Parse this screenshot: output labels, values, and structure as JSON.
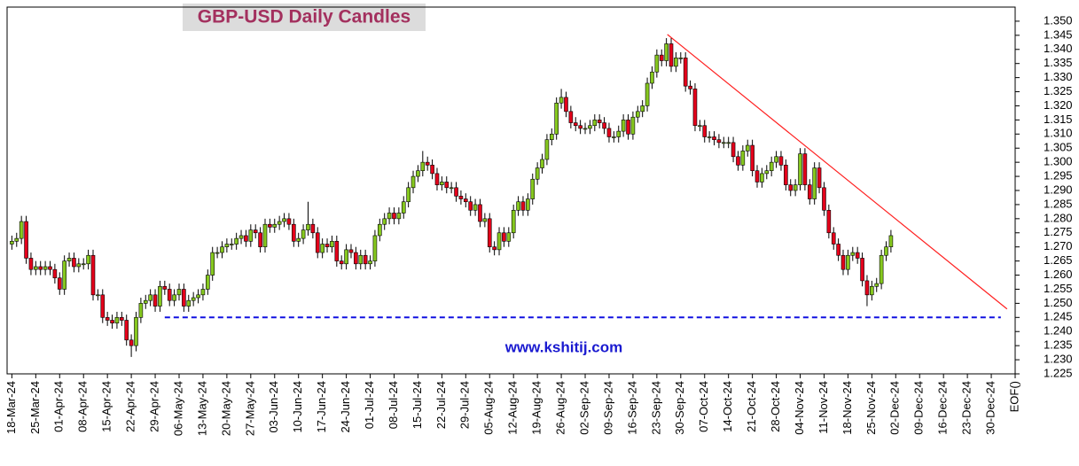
{
  "chart_data": {
    "type": "candlestick",
    "title": "GBP-USD Daily Candles",
    "annotation": "www.kshitij.com",
    "xlim": [
      -1,
      210
    ],
    "ylim": [
      1.225,
      1.355
    ],
    "grid": false,
    "up_color": "#86c81f",
    "down_color": "#e4001b",
    "yticks": [
      {
        "value": 1.35,
        "label": "1.350"
      },
      1.345,
      {
        "value": 1.34,
        "label": "1.340"
      },
      1.335,
      {
        "value": 1.33,
        "label": "1.330"
      },
      1.325,
      {
        "value": 1.32,
        "label": "1.320"
      },
      1.315,
      {
        "value": 1.31,
        "label": "1.310"
      },
      1.305,
      {
        "value": 1.3,
        "label": "1.300"
      },
      1.295,
      {
        "value": 1.29,
        "label": "1.290"
      },
      1.285,
      {
        "value": 1.28,
        "label": "1.280"
      },
      1.275,
      {
        "value": 1.27,
        "label": "1.270"
      },
      1.265,
      {
        "value": 1.26,
        "label": "1.260"
      },
      1.255,
      {
        "value": 1.25,
        "label": "1.250"
      },
      1.245,
      {
        "value": 1.24,
        "label": "1.240"
      },
      1.235,
      {
        "value": 1.23,
        "label": "1.230"
      },
      1.225
    ],
    "xticks": [
      {
        "value": 0,
        "label": "18-Mar-24"
      },
      {
        "value": 5,
        "label": "25-Mar-24"
      },
      {
        "value": 10,
        "label": "01-Apr-24"
      },
      {
        "value": 15,
        "label": "08-Apr-24"
      },
      {
        "value": 20,
        "label": "15-Apr-24"
      },
      {
        "value": 25,
        "label": "22-Apr-24"
      },
      {
        "value": 30,
        "label": "29-Apr-24"
      },
      {
        "value": 35,
        "label": "06-May-24"
      },
      {
        "value": 40,
        "label": "13-May-24"
      },
      {
        "value": 45,
        "label": "20-May-24"
      },
      {
        "value": 50,
        "label": "27-May-24"
      },
      {
        "value": 55,
        "label": "03-Jun-24"
      },
      {
        "value": 60,
        "label": "10-Jun-24"
      },
      {
        "value": 65,
        "label": "17-Jun-24"
      },
      {
        "value": 70,
        "label": "24-Jun-24"
      },
      {
        "value": 75,
        "label": "01-Jul-24"
      },
      {
        "value": 80,
        "label": "08-Jul-24"
      },
      {
        "value": 85,
        "label": "15-Jul-24"
      },
      {
        "value": 90,
        "label": "22-Jul-24"
      },
      {
        "value": 95,
        "label": "29-Jul-24"
      },
      {
        "value": 100,
        "label": "05-Aug-24"
      },
      {
        "value": 105,
        "label": "12-Aug-24"
      },
      {
        "value": 110,
        "label": "19-Aug-24"
      },
      {
        "value": 115,
        "label": "26-Aug-24"
      },
      {
        "value": 120,
        "label": "02-Sep-24"
      },
      {
        "value": 125,
        "label": "09-Sep-24"
      },
      {
        "value": 130,
        "label": "16-Sep-24"
      },
      {
        "value": 135,
        "label": "23-Sep-24"
      },
      {
        "value": 140,
        "label": "30-Sep-24"
      },
      {
        "value": 145,
        "label": "07-Oct-24"
      },
      {
        "value": 150,
        "label": "14-Oct-24"
      },
      {
        "value": 155,
        "label": "21-Oct-24"
      },
      {
        "value": 160,
        "label": "28-Oct-24"
      },
      {
        "value": 165,
        "label": "04-Nov-24"
      },
      {
        "value": 170,
        "label": "11-Nov-24"
      },
      {
        "value": 175,
        "label": "18-Nov-24"
      },
      {
        "value": 180,
        "label": "25-Nov-24"
      },
      {
        "value": 185,
        "label": "02-Dec-24"
      },
      {
        "value": 190,
        "label": "09-Dec-24"
      },
      {
        "value": 195,
        "label": "16-Dec-24"
      },
      {
        "value": 200,
        "label": "23-Dec-24"
      },
      {
        "value": 205,
        "label": "30-Dec-24"
      },
      {
        "value": 210,
        "label": "EOF()"
      }
    ],
    "x": [
      0,
      1,
      2,
      3,
      4,
      5,
      6,
      7,
      8,
      9,
      10,
      11,
      12,
      13,
      14,
      15,
      16,
      17,
      18,
      19,
      20,
      21,
      22,
      23,
      24,
      25,
      26,
      27,
      28,
      29,
      30,
      31,
      32,
      33,
      34,
      35,
      36,
      37,
      38,
      39,
      40,
      41,
      42,
      43,
      44,
      45,
      46,
      47,
      48,
      49,
      50,
      51,
      52,
      53,
      54,
      55,
      56,
      57,
      58,
      59,
      60,
      61,
      62,
      63,
      64,
      65,
      66,
      67,
      68,
      69,
      70,
      71,
      72,
      73,
      74,
      75,
      76,
      77,
      78,
      79,
      80,
      81,
      82,
      83,
      84,
      85,
      86,
      87,
      88,
      89,
      90,
      91,
      92,
      93,
      94,
      95,
      96,
      97,
      98,
      99,
      100,
      101,
      102,
      103,
      104,
      105,
      106,
      107,
      108,
      109,
      110,
      111,
      112,
      113,
      114,
      115,
      116,
      117,
      118,
      119,
      120,
      121,
      122,
      123,
      124,
      125,
      126,
      127,
      128,
      129,
      130,
      131,
      132,
      133,
      134,
      135,
      136,
      137,
      138,
      139,
      140,
      141,
      142,
      143,
      144,
      145,
      146,
      147,
      148,
      149,
      150,
      151,
      152,
      153,
      154,
      155,
      156,
      157,
      158,
      159,
      160,
      161,
      162,
      163,
      164,
      165,
      166,
      167,
      168,
      169,
      170,
      171,
      172,
      173,
      174,
      175,
      176,
      177,
      178,
      179,
      180,
      181,
      182,
      183,
      184
    ],
    "open": [
      1.271,
      1.272,
      1.273,
      1.279,
      1.266,
      1.262,
      1.263,
      1.262,
      1.263,
      1.262,
      1.259,
      1.255,
      1.265,
      1.266,
      1.263,
      1.264,
      1.264,
      1.267,
      1.253,
      1.253,
      1.245,
      1.244,
      1.243,
      1.245,
      1.244,
      1.237,
      1.235,
      1.245,
      1.25,
      1.251,
      1.253,
      1.249,
      1.256,
      1.255,
      1.251,
      1.253,
      1.255,
      1.249,
      1.251,
      1.252,
      1.253,
      1.255,
      1.26,
      1.268,
      1.268,
      1.27,
      1.271,
      1.271,
      1.273,
      1.274,
      1.272,
      1.276,
      1.275,
      1.27,
      1.278,
      1.277,
      1.278,
      1.279,
      1.28,
      1.278,
      1.272,
      1.273,
      1.276,
      1.278,
      1.275,
      1.268,
      1.271,
      1.27,
      1.272,
      1.265,
      1.264,
      1.269,
      1.268,
      1.264,
      1.267,
      1.264,
      1.265,
      1.274,
      1.278,
      1.28,
      1.282,
      1.28,
      1.282,
      1.286,
      1.291,
      1.295,
      1.297,
      1.3,
      1.299,
      1.296,
      1.292,
      1.293,
      1.291,
      1.291,
      1.288,
      1.287,
      1.286,
      1.283,
      1.285,
      1.279,
      1.28,
      1.27,
      1.269,
      1.275,
      1.272,
      1.275,
      1.283,
      1.286,
      1.283,
      1.287,
      1.294,
      1.298,
      1.301,
      1.308,
      1.31,
      1.321,
      1.323,
      1.318,
      1.314,
      1.313,
      1.312,
      1.312,
      1.313,
      1.315,
      1.314,
      1.312,
      1.309,
      1.309,
      1.311,
      1.315,
      1.31,
      1.316,
      1.318,
      1.32,
      1.328,
      1.332,
      1.338,
      1.336,
      1.342,
      1.334,
      1.337,
      1.337,
      1.327,
      1.326,
      1.313,
      1.313,
      1.309,
      1.309,
      1.308,
      1.307,
      1.307,
      1.307,
      1.302,
      1.299,
      1.304,
      1.306,
      1.297,
      1.293,
      1.296,
      1.297,
      1.3,
      1.302,
      1.299,
      1.292,
      1.29,
      1.292,
      1.303,
      1.292,
      1.287,
      1.298,
      1.291,
      1.283,
      1.275,
      1.271,
      1.267,
      1.262,
      1.267,
      1.268,
      1.266,
      1.258,
      1.253,
      1.256,
      1.257,
      1.267,
      1.27
    ],
    "high": [
      1.274,
      1.275,
      1.281,
      1.281,
      1.268,
      1.265,
      1.265,
      1.265,
      1.265,
      1.264,
      1.261,
      1.267,
      1.268,
      1.268,
      1.266,
      1.266,
      1.269,
      1.269,
      1.255,
      1.255,
      1.247,
      1.246,
      1.247,
      1.247,
      1.246,
      1.239,
      1.247,
      1.252,
      1.253,
      1.255,
      1.255,
      1.258,
      1.258,
      1.257,
      1.255,
      1.257,
      1.257,
      1.253,
      1.254,
      1.255,
      1.257,
      1.262,
      1.27,
      1.27,
      1.272,
      1.273,
      1.273,
      1.275,
      1.276,
      1.276,
      1.278,
      1.278,
      1.277,
      1.28,
      1.28,
      1.28,
      1.281,
      1.282,
      1.282,
      1.28,
      1.275,
      1.278,
      1.286,
      1.28,
      1.277,
      1.273,
      1.273,
      1.274,
      1.274,
      1.267,
      1.271,
      1.271,
      1.27,
      1.269,
      1.269,
      1.267,
      1.276,
      1.28,
      1.282,
      1.284,
      1.284,
      1.284,
      1.288,
      1.293,
      1.297,
      1.299,
      1.304,
      1.302,
      1.301,
      1.298,
      1.295,
      1.295,
      1.293,
      1.293,
      1.29,
      1.289,
      1.288,
      1.287,
      1.287,
      1.282,
      1.282,
      1.272,
      1.277,
      1.277,
      1.277,
      1.285,
      1.288,
      1.288,
      1.289,
      1.296,
      1.3,
      1.303,
      1.31,
      1.312,
      1.323,
      1.326,
      1.325,
      1.32,
      1.316,
      1.315,
      1.314,
      1.315,
      1.317,
      1.317,
      1.316,
      1.314,
      1.311,
      1.313,
      1.317,
      1.317,
      1.318,
      1.32,
      1.322,
      1.33,
      1.334,
      1.34,
      1.34,
      1.344,
      1.344,
      1.339,
      1.339,
      1.339,
      1.329,
      1.328,
      1.315,
      1.315,
      1.311,
      1.311,
      1.31,
      1.309,
      1.309,
      1.309,
      1.304,
      1.306,
      1.308,
      1.308,
      1.299,
      1.298,
      1.299,
      1.302,
      1.304,
      1.304,
      1.301,
      1.294,
      1.294,
      1.305,
      1.305,
      1.294,
      1.3,
      1.3,
      1.293,
      1.285,
      1.277,
      1.273,
      1.269,
      1.269,
      1.27,
      1.27,
      1.268,
      1.26,
      1.258,
      1.259,
      1.269,
      1.272,
      1.276
    ],
    "low": [
      1.269,
      1.27,
      1.271,
      1.264,
      1.26,
      1.26,
      1.26,
      1.26,
      1.26,
      1.257,
      1.253,
      1.253,
      1.263,
      1.261,
      1.261,
      1.262,
      1.262,
      1.251,
      1.251,
      1.243,
      1.242,
      1.241,
      1.241,
      1.242,
      1.235,
      1.231,
      1.233,
      1.243,
      1.248,
      1.249,
      1.247,
      1.247,
      1.253,
      1.249,
      1.249,
      1.251,
      1.247,
      1.247,
      1.249,
      1.25,
      1.251,
      1.253,
      1.258,
      1.266,
      1.266,
      1.268,
      1.269,
      1.269,
      1.271,
      1.27,
      1.27,
      1.273,
      1.268,
      1.268,
      1.275,
      1.275,
      1.276,
      1.277,
      1.276,
      1.27,
      1.27,
      1.271,
      1.274,
      1.273,
      1.266,
      1.266,
      1.268,
      1.268,
      1.263,
      1.262,
      1.262,
      1.266,
      1.262,
      1.262,
      1.262,
      1.262,
      1.263,
      1.272,
      1.276,
      1.278,
      1.278,
      1.278,
      1.28,
      1.284,
      1.289,
      1.293,
      1.295,
      1.297,
      1.294,
      1.29,
      1.29,
      1.289,
      1.289,
      1.286,
      1.285,
      1.284,
      1.281,
      1.281,
      1.277,
      1.277,
      1.268,
      1.267,
      1.267,
      1.27,
      1.27,
      1.273,
      1.281,
      1.281,
      1.281,
      1.285,
      1.292,
      1.296,
      1.299,
      1.306,
      1.308,
      1.319,
      1.316,
      1.312,
      1.311,
      1.31,
      1.31,
      1.31,
      1.311,
      1.312,
      1.31,
      1.307,
      1.307,
      1.307,
      1.309,
      1.308,
      1.308,
      1.314,
      1.316,
      1.318,
      1.326,
      1.33,
      1.334,
      1.334,
      1.332,
      1.332,
      1.335,
      1.325,
      1.324,
      1.311,
      1.311,
      1.307,
      1.307,
      1.306,
      1.305,
      1.305,
      1.305,
      1.3,
      1.297,
      1.297,
      1.302,
      1.295,
      1.291,
      1.291,
      1.294,
      1.295,
      1.298,
      1.297,
      1.29,
      1.288,
      1.288,
      1.29,
      1.29,
      1.285,
      1.285,
      1.289,
      1.281,
      1.273,
      1.269,
      1.265,
      1.26,
      1.26,
      1.265,
      1.264,
      1.256,
      1.249,
      1.251,
      1.254,
      1.255,
      1.265,
      1.268
    ],
    "close": [
      1.272,
      1.273,
      1.279,
      1.266,
      1.262,
      1.263,
      1.262,
      1.263,
      1.262,
      1.259,
      1.255,
      1.265,
      1.266,
      1.263,
      1.264,
      1.264,
      1.267,
      1.253,
      1.253,
      1.245,
      1.244,
      1.243,
      1.245,
      1.244,
      1.237,
      1.235,
      1.245,
      1.25,
      1.251,
      1.253,
      1.249,
      1.256,
      1.255,
      1.251,
      1.253,
      1.255,
      1.249,
      1.251,
      1.252,
      1.253,
      1.255,
      1.26,
      1.268,
      1.268,
      1.27,
      1.271,
      1.271,
      1.273,
      1.274,
      1.272,
      1.276,
      1.275,
      1.27,
      1.278,
      1.277,
      1.278,
      1.279,
      1.28,
      1.278,
      1.272,
      1.273,
      1.276,
      1.278,
      1.275,
      1.268,
      1.271,
      1.27,
      1.272,
      1.265,
      1.264,
      1.269,
      1.268,
      1.264,
      1.267,
      1.264,
      1.265,
      1.274,
      1.278,
      1.28,
      1.282,
      1.28,
      1.282,
      1.286,
      1.291,
      1.295,
      1.297,
      1.3,
      1.299,
      1.296,
      1.292,
      1.293,
      1.291,
      1.291,
      1.288,
      1.287,
      1.286,
      1.283,
      1.285,
      1.279,
      1.28,
      1.27,
      1.269,
      1.275,
      1.272,
      1.275,
      1.283,
      1.286,
      1.283,
      1.287,
      1.294,
      1.298,
      1.301,
      1.308,
      1.31,
      1.321,
      1.323,
      1.318,
      1.314,
      1.313,
      1.312,
      1.312,
      1.313,
      1.315,
      1.314,
      1.312,
      1.309,
      1.309,
      1.311,
      1.315,
      1.31,
      1.316,
      1.318,
      1.32,
      1.328,
      1.332,
      1.338,
      1.336,
      1.342,
      1.334,
      1.337,
      1.337,
      1.327,
      1.326,
      1.313,
      1.313,
      1.309,
      1.309,
      1.308,
      1.307,
      1.307,
      1.307,
      1.302,
      1.299,
      1.304,
      1.306,
      1.297,
      1.293,
      1.296,
      1.297,
      1.3,
      1.302,
      1.299,
      1.292,
      1.29,
      1.292,
      1.303,
      1.292,
      1.287,
      1.298,
      1.291,
      1.283,
      1.275,
      1.271,
      1.267,
      1.262,
      1.267,
      1.268,
      1.266,
      1.258,
      1.253,
      1.256,
      1.257,
      1.267,
      1.27,
      1.274
    ],
    "lines": [
      {
        "color": "#ff2020",
        "dashed": false,
        "x": [
          137.2,
          208.3
        ],
        "y": [
          1.3453,
          1.248
        ]
      },
      {
        "color": "#1010e0",
        "dashed": true,
        "x": [
          32,
          207
        ],
        "y": [
          1.245,
          1.245
        ]
      }
    ]
  }
}
